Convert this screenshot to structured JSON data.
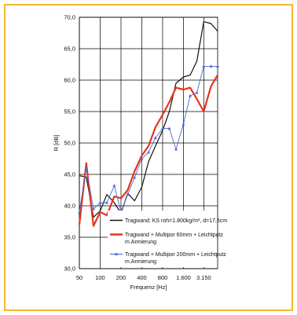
{
  "colors": {
    "frame": "#f7b733",
    "grid": "#000000",
    "series_black": "#111111",
    "series_red": "#e8331c",
    "series_blue": "#4a6bd6"
  },
  "chart_data": {
    "type": "line",
    "xlabel": "Frequenz [Hz]",
    "ylabel": "R [dB]",
    "x_scale": "log",
    "xlim": [
      50,
      5000
    ],
    "ylim": [
      30,
      70
    ],
    "grid": true,
    "legend_placement": "bottom-right",
    "y_ticks": [
      "70,0",
      "65,0",
      "60,0",
      "55,0",
      "50,0",
      "45,0",
      "40,0",
      "35,0",
      "30,0"
    ],
    "x_ticks": [
      "50",
      "100",
      "200",
      "400",
      "800",
      "1.600",
      "3.150"
    ],
    "x": [
      50,
      63,
      80,
      100,
      125,
      160,
      200,
      250,
      315,
      400,
      500,
      630,
      800,
      1000,
      1250,
      1600,
      2000,
      2500,
      3150,
      4000,
      5000
    ],
    "series": [
      {
        "name": "Tragwand: KS roh=1.800kg/m³, d=17,5cm",
        "color": "#111111",
        "marker": "none",
        "values": [
          44.8,
          44.6,
          38.2,
          39.2,
          41.8,
          40.5,
          38.8,
          42.0,
          40.8,
          43.0,
          47.0,
          49.5,
          52.0,
          55.0,
          59.5,
          60.5,
          60.8,
          63.0,
          69.3,
          69.0,
          67.8
        ]
      },
      {
        "name": "Tragwand + Multipor 60mm + Leichtputz m.Armierung",
        "color": "#e8331c",
        "marker": "none",
        "values": [
          37.0,
          46.8,
          36.8,
          39.0,
          38.5,
          41.5,
          41.2,
          42.5,
          45.5,
          48.0,
          49.5,
          52.5,
          54.5,
          56.5,
          58.8,
          58.5,
          58.8,
          57.0,
          55.0,
          59.0,
          60.8
        ]
      },
      {
        "name": "Tragwand + Multipor 200mm + Leichtputz m.Armierung",
        "color": "#4a6bd6",
        "marker": "triangle",
        "values": [
          39.0,
          46.0,
          39.5,
          40.5,
          40.5,
          43.2,
          39.0,
          41.8,
          44.5,
          47.5,
          48.5,
          50.8,
          52.3,
          52.3,
          49.0,
          53.0,
          57.5,
          58.0,
          62.2,
          62.2,
          62.2
        ]
      }
    ]
  }
}
